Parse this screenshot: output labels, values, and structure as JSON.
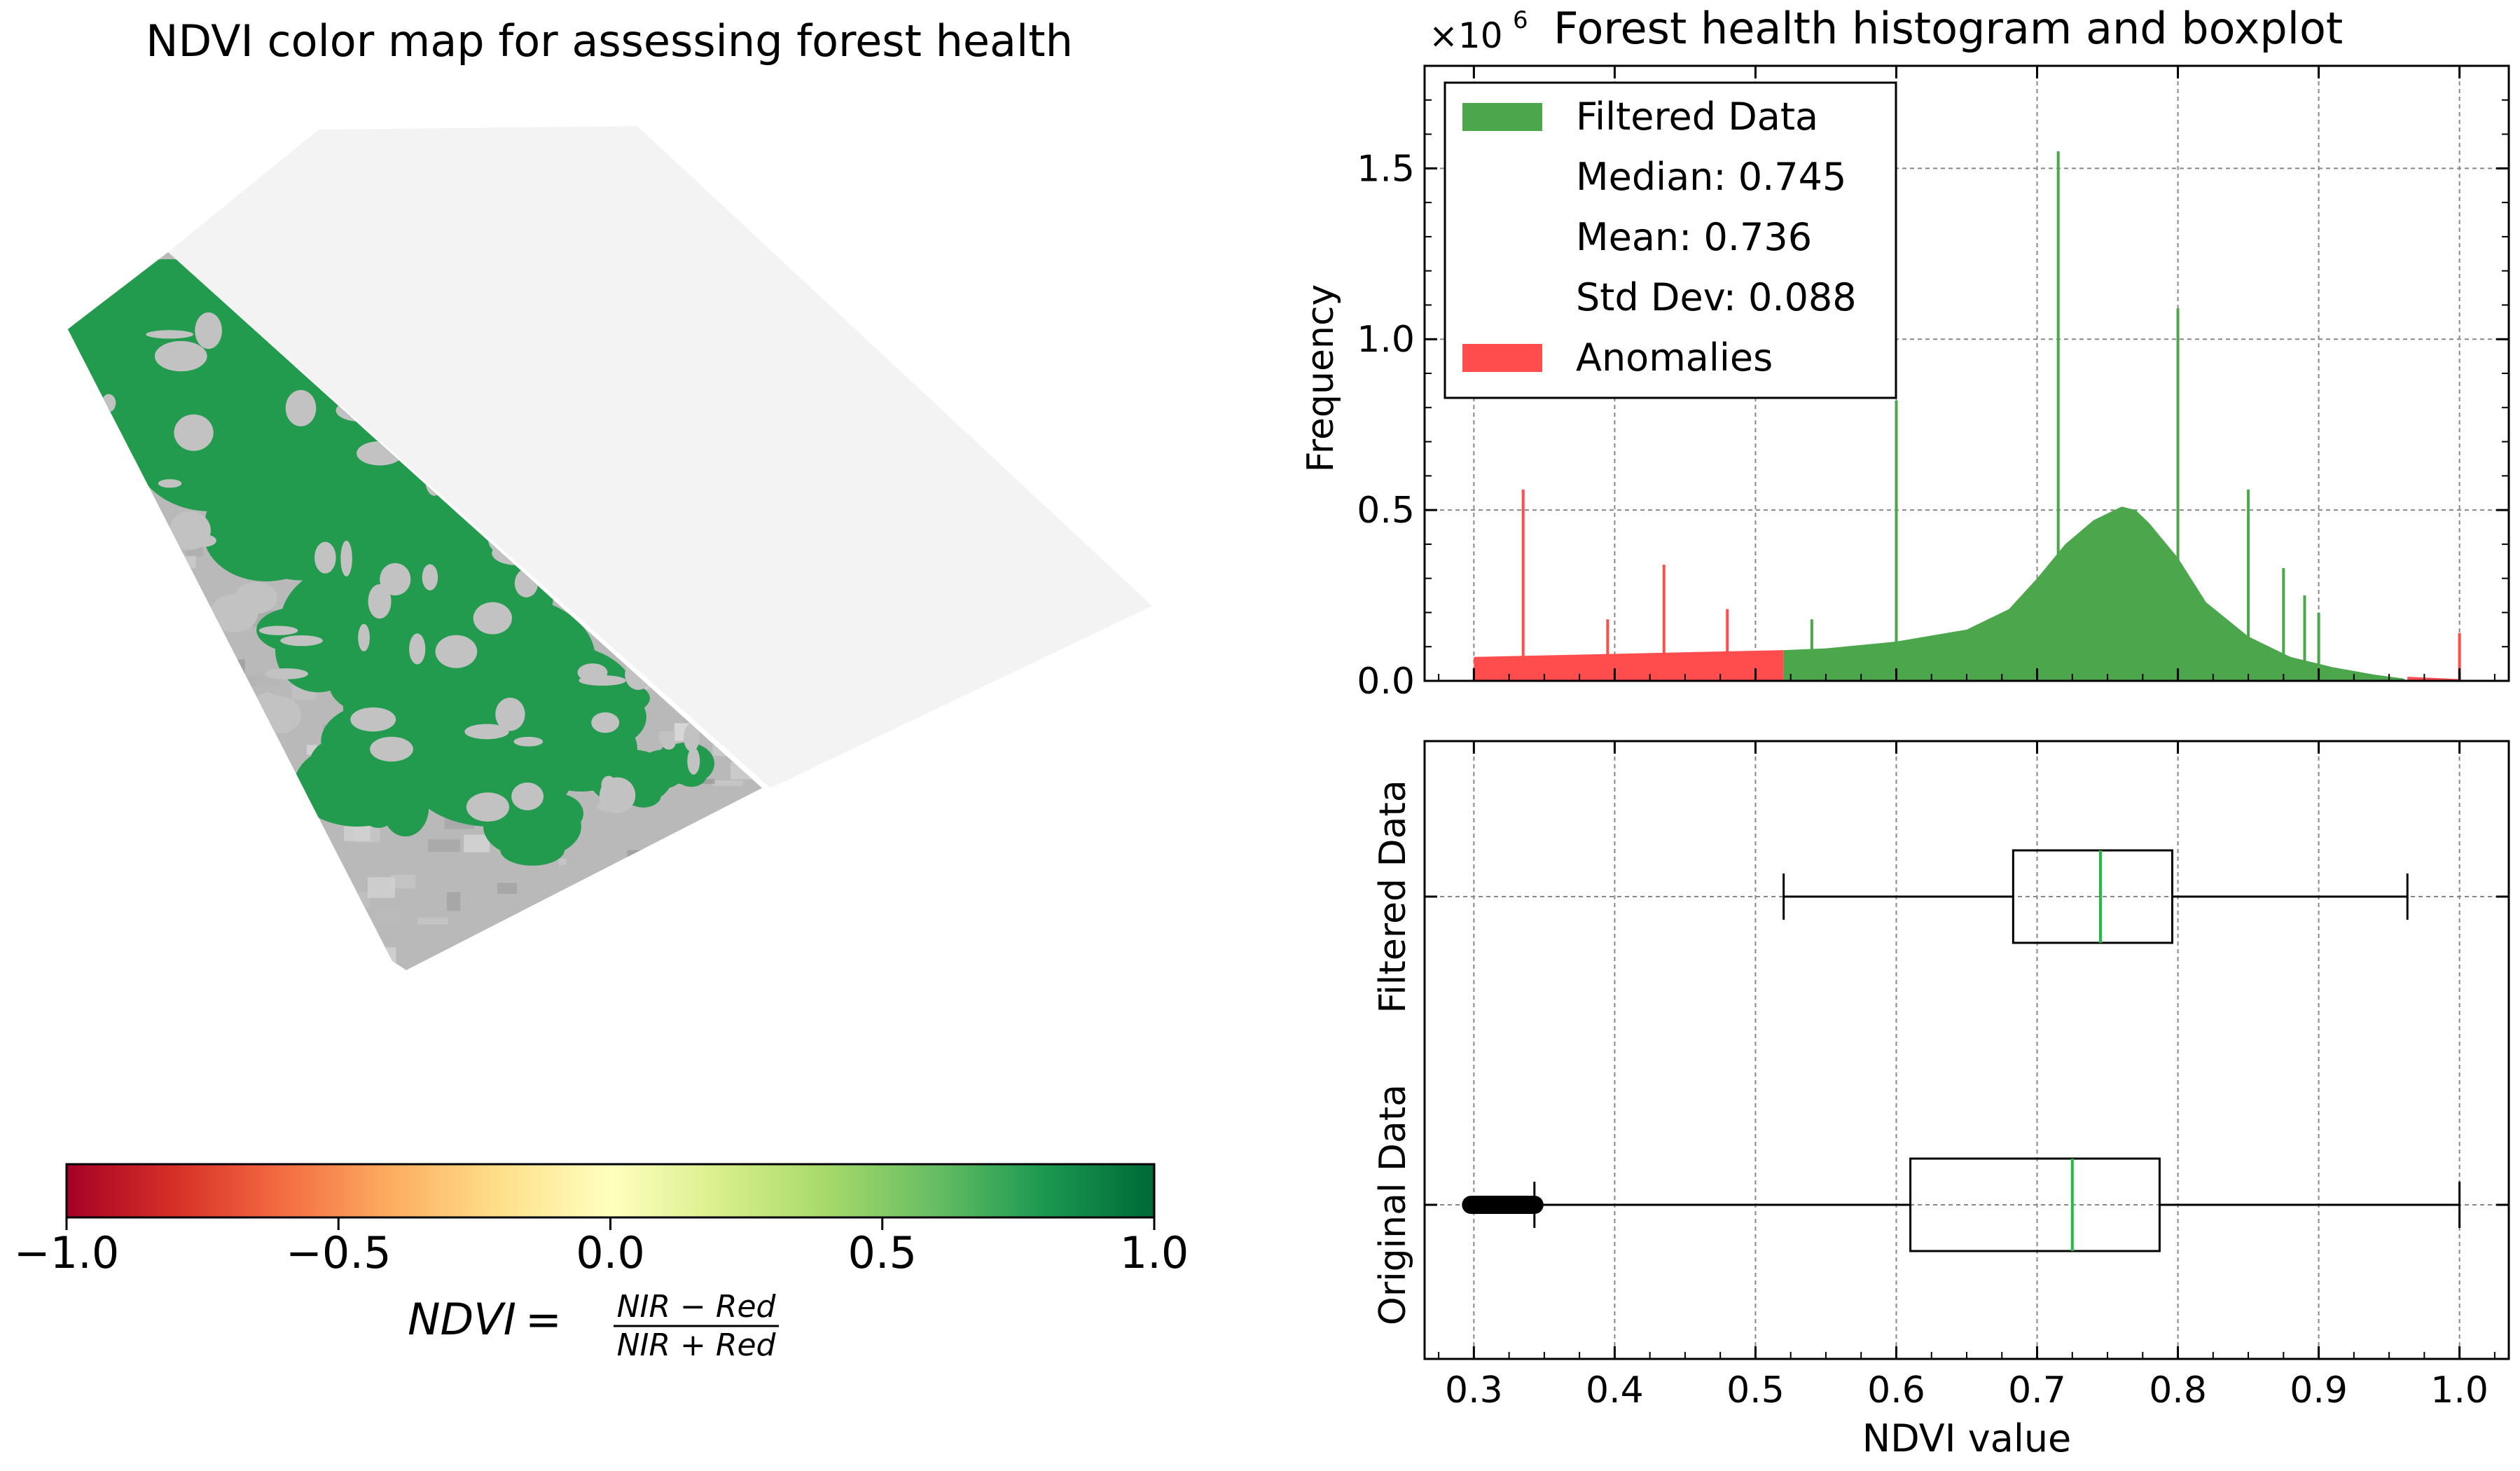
{
  "left_panel": {
    "title": "NDVI color map for assessing forest health",
    "colorbar": {
      "ticks": [
        "−1.0",
        "−0.5",
        "0.0",
        "0.5",
        "1.0"
      ],
      "tick_values": [
        -1.0,
        -0.5,
        0.0,
        0.5,
        1.0
      ],
      "formula_lhs": "NDVI",
      "formula_eq": "=",
      "formula_numerator": "NIR − Red",
      "formula_denominator": "NIR + Red",
      "colors": [
        "#a50026",
        "#d73027",
        "#f46d43",
        "#fdae61",
        "#fee08b",
        "#ffffbf",
        "#d9ef8b",
        "#a6d96a",
        "#66bd63",
        "#1a9850",
        "#006837"
      ]
    },
    "map_colors": {
      "forest": "#239b4e",
      "non_forest": "#b8b8b8",
      "no_data": "#f2f2f2"
    }
  },
  "chart_data": [
    {
      "type": "bar",
      "title": "Forest health histogram and boxplot",
      "ylabel": "Frequency",
      "y_multiplier_base": "×10",
      "y_multiplier_exp": "6",
      "xlim": [
        0.265,
        1.035
      ],
      "ylim": [
        0,
        1.8
      ],
      "y_ticks": [
        0.0,
        0.5,
        1.0,
        1.5
      ],
      "y_tick_labels": [
        "0.0",
        "0.5",
        "1.0",
        "1.5"
      ],
      "grid": true,
      "legend_position": "top-left",
      "legend": {
        "filtered": "Filtered Data",
        "median": "Median: 0.745",
        "mean": "Mean: 0.736",
        "std": "Std Dev: 0.088",
        "anomalies": "Anomalies"
      },
      "colors": {
        "filtered": "#4ca64c",
        "anomalies": "#ff4c4c"
      },
      "series": [
        {
          "name": "Filtered Data",
          "x": [
            0.52,
            0.55,
            0.6,
            0.65,
            0.68,
            0.7,
            0.72,
            0.74,
            0.76,
            0.77,
            0.78,
            0.8,
            0.82,
            0.85,
            0.88,
            0.91,
            0.94,
            0.96,
            0.963
          ],
          "values": [
            0.09,
            0.095,
            0.115,
            0.15,
            0.21,
            0.3,
            0.4,
            0.47,
            0.51,
            0.5,
            0.46,
            0.36,
            0.23,
            0.13,
            0.07,
            0.04,
            0.018,
            0.007,
            0.0
          ],
          "spikes": [
            [
              0.54,
              0.18
            ],
            [
              0.6,
              0.82
            ],
            [
              0.715,
              1.55
            ],
            [
              0.8,
              1.09
            ],
            [
              0.85,
              0.56
            ],
            [
              0.875,
              0.33
            ],
            [
              0.89,
              0.25
            ],
            [
              0.9,
              0.2
            ]
          ]
        },
        {
          "name": "Anomalies",
          "x": [
            0.3,
            0.52
          ],
          "values": [
            0.07,
            0.09
          ],
          "spikes": [
            [
              0.335,
              0.56
            ],
            [
              0.395,
              0.18
            ],
            [
              0.435,
              0.34
            ],
            [
              0.48,
              0.21
            ]
          ],
          "high_x": [
            0.963,
            1.0
          ],
          "high_values": [
            0.012,
            0.005
          ],
          "high_spikes": [
            [
              1.0,
              0.14
            ]
          ]
        }
      ]
    },
    {
      "type": "boxplot",
      "xlabel": "NDVI value",
      "xlim": [
        0.265,
        1.035
      ],
      "x_ticks": [
        0.3,
        0.4,
        0.5,
        0.6,
        0.7,
        0.8,
        0.9,
        1.0
      ],
      "x_tick_labels": [
        "0.3",
        "0.4",
        "0.5",
        "0.6",
        "0.7",
        "0.8",
        "0.9",
        "1.0"
      ],
      "categories": [
        "Original Data",
        "Filtered Data"
      ],
      "grid": true,
      "median_color": "#22bb44",
      "boxes": [
        {
          "name": "Original Data",
          "whislo": 0.343,
          "q1": 0.61,
          "med": 0.725,
          "q3": 0.787,
          "whishi": 1.0,
          "fliers_range": [
            0.298,
            0.343
          ]
        },
        {
          "name": "Filtered Data",
          "whislo": 0.52,
          "q1": 0.683,
          "med": 0.745,
          "q3": 0.796,
          "whishi": 0.963
        }
      ]
    }
  ]
}
